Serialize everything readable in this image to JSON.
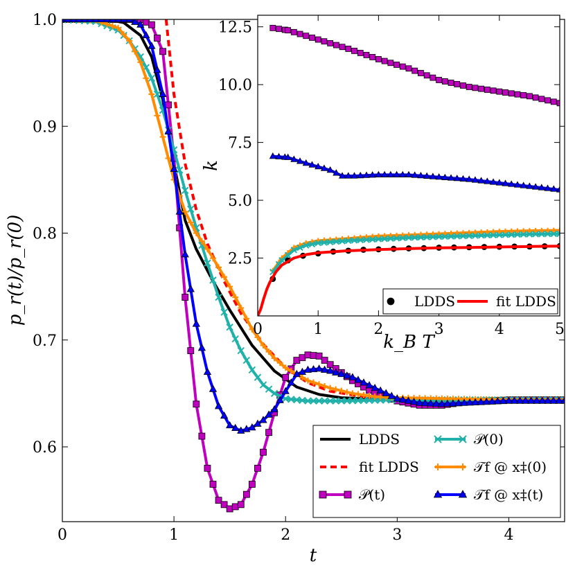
{
  "chart_data": [
    {
      "type": "line",
      "xlabel": "t",
      "ylabel": "p_r(t)/p_r(0)",
      "xlim": [
        0,
        4.5
      ],
      "ylim": [
        0.53,
        1.0
      ],
      "xticks": [
        "0",
        "1",
        "2",
        "3",
        "4"
      ],
      "yticks": [
        "0.6",
        "0.7",
        "0.8",
        "0.9",
        "1.0"
      ],
      "grid": false,
      "legend_position": "lower-right",
      "series": [
        {
          "name": "LDDS",
          "color": "#000000",
          "style": "solid",
          "marker": "none",
          "x": [
            0,
            0.4,
            0.55,
            0.7,
            0.8,
            0.9,
            1.0,
            1.1,
            1.2,
            1.35,
            1.5,
            1.7,
            1.9,
            2.1,
            2.3,
            2.5,
            3.0,
            3.5,
            4.0,
            4.5
          ],
          "y": [
            1.0,
            1.0,
            0.997,
            0.985,
            0.965,
            0.925,
            0.865,
            0.812,
            0.785,
            0.755,
            0.728,
            0.695,
            0.671,
            0.656,
            0.649,
            0.646,
            0.644,
            0.643,
            0.643,
            0.643
          ]
        },
        {
          "name": "fit LDDS",
          "color": "#ff0000",
          "style": "dashed",
          "marker": "none",
          "x": [
            0.93,
            1.0,
            1.1,
            1.2,
            1.3,
            1.45,
            1.6,
            1.8,
            2.0,
            2.2,
            2.4,
            2.7,
            3.0,
            3.5,
            4.0,
            4.5
          ],
          "y": [
            1.0,
            0.93,
            0.865,
            0.822,
            0.79,
            0.755,
            0.725,
            0.696,
            0.674,
            0.66,
            0.652,
            0.647,
            0.645,
            0.643,
            0.643,
            0.643
          ]
        },
        {
          "name": "𝒫(t)",
          "color": "#bf00bf",
          "style": "solid",
          "marker": "square",
          "x": [
            0,
            0.5,
            0.6,
            0.7,
            0.8,
            0.9,
            1.0,
            1.1,
            1.2,
            1.3,
            1.4,
            1.5,
            1.6,
            1.7,
            1.8,
            1.9,
            2.0,
            2.1,
            2.2,
            2.3,
            2.4,
            2.6,
            2.8,
            3.0,
            3.2,
            3.4,
            3.6,
            3.8,
            4.0,
            4.5
          ],
          "y": [
            1.0,
            1.0,
            1.0,
            1.0,
            0.995,
            0.97,
            0.87,
            0.74,
            0.64,
            0.58,
            0.55,
            0.542,
            0.546,
            0.565,
            0.595,
            0.632,
            0.665,
            0.681,
            0.686,
            0.685,
            0.677,
            0.662,
            0.65,
            0.643,
            0.639,
            0.639,
            0.642,
            0.643,
            0.644,
            0.644
          ]
        },
        {
          "name": "𝒫(0)",
          "color": "#20b2aa",
          "style": "solid",
          "marker": "x",
          "x": [
            0,
            0.3,
            0.5,
            0.6,
            0.7,
            0.8,
            0.9,
            1.0,
            1.1,
            1.2,
            1.3,
            1.4,
            1.5,
            1.6,
            1.7,
            1.8,
            1.9,
            2.0,
            2.2,
            2.5,
            3.0,
            3.5,
            4.0,
            4.5
          ],
          "y": [
            1.0,
            0.998,
            0.99,
            0.98,
            0.965,
            0.945,
            0.915,
            0.878,
            0.84,
            0.805,
            0.772,
            0.74,
            0.712,
            0.69,
            0.672,
            0.658,
            0.65,
            0.645,
            0.643,
            0.643,
            0.644,
            0.644,
            0.644,
            0.644
          ]
        },
        {
          "name": "𝒯_f @ x‡(0)",
          "color": "#ff8c00",
          "style": "solid",
          "marker": "plus",
          "x": [
            0,
            0.3,
            0.5,
            0.6,
            0.7,
            0.8,
            0.9,
            1.0,
            1.1,
            1.2,
            1.3,
            1.4,
            1.5,
            1.6,
            1.7,
            1.8,
            1.9,
            2.0,
            2.2,
            2.4,
            2.6,
            2.8,
            3.0,
            3.5,
            4.0,
            4.5
          ],
          "y": [
            1.0,
            0.999,
            0.992,
            0.98,
            0.96,
            0.93,
            0.89,
            0.85,
            0.82,
            0.8,
            0.785,
            0.768,
            0.75,
            0.73,
            0.71,
            0.695,
            0.683,
            0.674,
            0.662,
            0.655,
            0.65,
            0.647,
            0.646,
            0.645,
            0.644,
            0.644
          ]
        },
        {
          "name": "𝒯_f @ x‡(t)",
          "color": "#0000ff",
          "style": "solid",
          "marker": "triangle",
          "x": [
            0,
            0.5,
            0.6,
            0.7,
            0.8,
            0.9,
            1.0,
            1.1,
            1.2,
            1.3,
            1.4,
            1.5,
            1.6,
            1.7,
            1.8,
            1.9,
            2.0,
            2.1,
            2.2,
            2.3,
            2.4,
            2.6,
            2.8,
            3.0,
            3.2,
            3.4,
            3.6,
            3.8,
            4.0,
            4.5
          ],
          "y": [
            1.0,
            1.0,
            1.0,
            0.995,
            0.975,
            0.93,
            0.86,
            0.78,
            0.715,
            0.67,
            0.638,
            0.62,
            0.615,
            0.618,
            0.625,
            0.635,
            0.652,
            0.668,
            0.672,
            0.673,
            0.671,
            0.665,
            0.655,
            0.645,
            0.641,
            0.64,
            0.641,
            0.642,
            0.643,
            0.643
          ]
        }
      ]
    },
    {
      "type": "line",
      "xlabel": "k_B T",
      "ylabel": "k",
      "xlim": [
        0,
        5
      ],
      "ylim": [
        0,
        13
      ],
      "xticks": [
        "0",
        "1",
        "2",
        "3",
        "4",
        "5"
      ],
      "yticks": [
        "2.5",
        "5.0",
        "7.5",
        "10.0",
        "12.5"
      ],
      "grid": false,
      "legend_position": "lower-right",
      "series": [
        {
          "name": "𝒫(t)",
          "color": "#bf00bf",
          "style": "solid",
          "marker": "square",
          "x": [
            0.25,
            0.5,
            1.0,
            1.5,
            2.0,
            2.5,
            3.0,
            3.5,
            4.0,
            4.5,
            5.0
          ],
          "y": [
            12.45,
            12.35,
            11.95,
            11.55,
            11.1,
            10.7,
            10.2,
            9.9,
            9.7,
            9.5,
            9.2
          ]
        },
        {
          "name": "𝒯_f @ x‡(t)",
          "color": "#0000ff",
          "style": "solid",
          "marker": "triangle",
          "x": [
            0.25,
            0.5,
            0.8,
            1.0,
            1.2,
            1.4,
            1.6,
            2.0,
            2.5,
            3.0,
            3.5,
            4.0,
            4.5,
            5.0
          ],
          "y": [
            6.9,
            6.85,
            6.6,
            6.45,
            6.3,
            6.05,
            6.05,
            6.1,
            6.1,
            6.0,
            5.9,
            5.75,
            5.6,
            5.45
          ]
        },
        {
          "name": "𝒯_f @ x‡(0)",
          "color": "#ff8c00",
          "style": "solid",
          "marker": "plus",
          "x": [
            0.25,
            0.4,
            0.6,
            0.8,
            1.0,
            1.5,
            2.0,
            2.5,
            3.0,
            3.5,
            4.0,
            4.5,
            5.0
          ],
          "y": [
            1.95,
            2.5,
            2.95,
            3.15,
            3.25,
            3.35,
            3.45,
            3.5,
            3.55,
            3.6,
            3.65,
            3.68,
            3.7
          ]
        },
        {
          "name": "𝒫(0)",
          "color": "#20b2aa",
          "style": "solid",
          "marker": "x",
          "x": [
            0.25,
            0.4,
            0.6,
            0.8,
            1.0,
            1.5,
            2.0,
            2.5,
            3.0,
            3.5,
            4.0,
            4.5,
            5.0
          ],
          "y": [
            1.9,
            2.4,
            2.85,
            3.05,
            3.15,
            3.25,
            3.32,
            3.38,
            3.42,
            3.46,
            3.5,
            3.53,
            3.55
          ]
        },
        {
          "name": "LDDS",
          "color": "#000000",
          "style": "none",
          "marker": "circle",
          "x": [
            0.25,
            0.5,
            0.75,
            1.0,
            1.25,
            1.5,
            1.75,
            2.0,
            2.25,
            2.5,
            2.75,
            3.0,
            3.25,
            3.5,
            3.75,
            4.0,
            4.25,
            4.5,
            4.75,
            5.0
          ],
          "y": [
            1.6,
            2.4,
            2.6,
            2.7,
            2.78,
            2.82,
            2.86,
            2.88,
            2.9,
            2.92,
            2.93,
            2.95,
            2.96,
            2.97,
            2.98,
            2.99,
            3.0,
            3.0,
            3.01,
            3.02
          ]
        },
        {
          "name": "fit LDDS",
          "color": "#ff0000",
          "style": "solid",
          "marker": "none",
          "x": [
            0.0,
            0.05,
            0.1,
            0.15,
            0.2,
            0.3,
            0.4,
            0.6,
            0.8,
            1.0,
            1.5,
            2.0,
            2.5,
            3.0,
            3.5,
            4.0,
            4.5,
            5.0
          ],
          "y": [
            0.0,
            0.3,
            0.75,
            1.15,
            1.45,
            1.9,
            2.2,
            2.5,
            2.65,
            2.73,
            2.82,
            2.87,
            2.91,
            2.94,
            2.96,
            2.98,
            3.0,
            3.02
          ]
        }
      ]
    }
  ],
  "main_legend": {
    "col1": [
      {
        "label": "LDDS",
        "series": "LDDS"
      },
      {
        "label": "fit LDDS",
        "series": "fit LDDS"
      },
      {
        "label": "𝒫(t)",
        "series": "𝒫(t)"
      }
    ],
    "col2": [
      {
        "label": "𝒫(0)",
        "series": "𝒫(0)"
      },
      {
        "label": "𝒯f @ x‡(0)",
        "series": "𝒯_f @ x‡(0)"
      },
      {
        "label": "𝒯f @ x‡(t)",
        "series": "𝒯_f @ x‡(t)"
      }
    ]
  },
  "inset_legend": [
    {
      "label": "LDDS",
      "series": "LDDS"
    },
    {
      "label": "fit LDDS",
      "series": "fit LDDS"
    }
  ]
}
